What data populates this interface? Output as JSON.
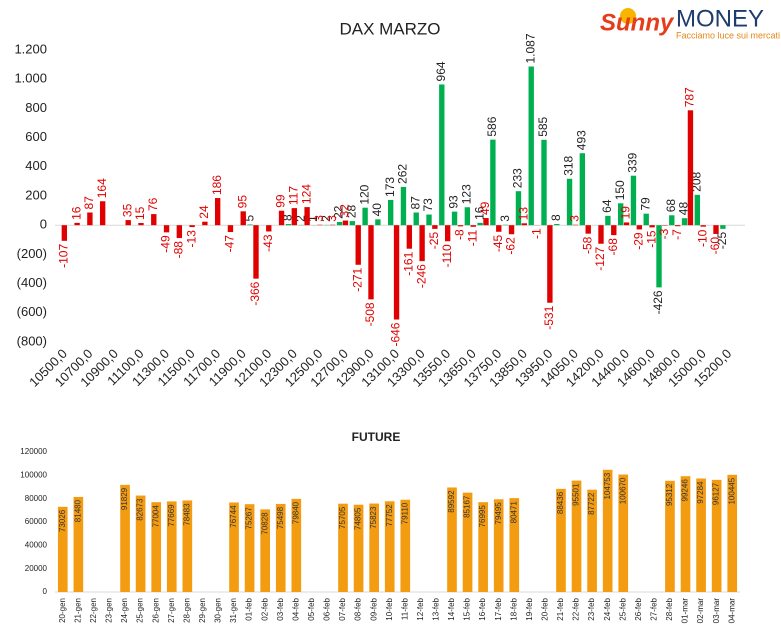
{
  "logo": {
    "brand": "Sunny",
    "name": "MONEY",
    "tagline": "Facciamo luce sui mercati"
  },
  "chart_data": [
    {
      "type": "bar",
      "title": "DAX MARZO",
      "categories": [
        "10500,0",
        null,
        "10700,0",
        null,
        "10900,0",
        null,
        "11100,0",
        null,
        "11300,0",
        null,
        "11500,0",
        null,
        "11700,0",
        null,
        "11900,0",
        null,
        "12100,0",
        null,
        "12300,0",
        null,
        "12500,0",
        null,
        "12700,0",
        null,
        "12900,0",
        null,
        "13100,0",
        null,
        "13300,0",
        null,
        "13550,0",
        null,
        "13650,0",
        null,
        "13750,0",
        null,
        "13850,0",
        null,
        "13950,0",
        null,
        "14050,0",
        null,
        "14200,0",
        null,
        "14400,0",
        null,
        "14600,0",
        null,
        "14800,0",
        null,
        "15000,0",
        null,
        "15200,0",
        null
      ],
      "series": [
        {
          "color": "#00b050",
          "values": [
            null,
            null,
            null,
            null,
            null,
            null,
            null,
            null,
            null,
            null,
            null,
            null,
            null,
            null,
            null,
            5,
            null,
            null,
            8,
            2,
            1,
            2,
            22,
            28,
            120,
            40,
            173,
            262,
            87,
            73,
            964,
            93,
            123,
            16,
            586,
            3,
            233,
            1087,
            585,
            8,
            318,
            493,
            null,
            64,
            150,
            339,
            79,
            -426,
            68,
            48,
            208,
            null,
            -25,
            null
          ],
          "value_labels": [
            null,
            null,
            null,
            null,
            null,
            null,
            null,
            null,
            null,
            null,
            null,
            null,
            null,
            null,
            null,
            "5",
            null,
            null,
            "8",
            "2",
            "1",
            "2",
            "22",
            "28",
            "120",
            "40",
            "173",
            "262",
            "87",
            "73",
            "964",
            "93",
            "123",
            "16",
            "586",
            "3",
            "233",
            "1.087",
            "585",
            "8",
            "318",
            "493",
            null,
            "64",
            "150",
            "339",
            "79",
            "-426",
            "68",
            "48",
            "208",
            null,
            "-25",
            null
          ]
        },
        {
          "color": "#e00000",
          "values": [
            -107,
            16,
            87,
            164,
            null,
            35,
            15,
            76,
            -49,
            -88,
            -13,
            24,
            186,
            -47,
            95,
            -366,
            -43,
            99,
            117,
            124,
            3,
            3,
            32,
            -271,
            -508,
            null,
            -646,
            -161,
            -246,
            -25,
            -110,
            -8,
            -11,
            49,
            -45,
            -62,
            13,
            -1,
            -531,
            null,
            3,
            -58,
            -127,
            -68,
            19,
            -29,
            -15,
            -3,
            -7,
            787,
            -10,
            -60,
            null,
            null
          ]
        }
      ],
      "ylim": [
        -800,
        1200
      ],
      "yticks": [
        {
          "value": 1200,
          "label": "1.200"
        },
        {
          "value": 1000,
          "label": "1.000"
        },
        800,
        600,
        400,
        200,
        0,
        {
          "value": -200,
          "label": "(200)"
        },
        {
          "value": -400,
          "label": "(400)"
        },
        {
          "value": -600,
          "label": "(600)"
        },
        {
          "value": -800,
          "label": "(800)"
        }
      ],
      "grid": false
    },
    {
      "type": "bar",
      "title": "FUTURE",
      "color": "#f39c12",
      "categories": [
        "20-gen",
        "21-gen",
        "22-gen",
        "23-gen",
        "24-gen",
        "25-gen",
        "26-gen",
        "27-gen",
        "28-gen",
        "29-gen",
        "30-gen",
        "31-gen",
        "01-feb",
        "02-feb",
        "03-feb",
        "04-feb",
        "05-feb",
        "06-feb",
        "07-feb",
        "08-feb",
        "09-feb",
        "10-feb",
        "11-feb",
        "12-feb",
        "13-feb",
        "14-feb",
        "15-feb",
        "16-feb",
        "17-feb",
        "18-feb",
        "19-feb",
        "20-feb",
        "21-feb",
        "22-feb",
        "23-feb",
        "24-feb",
        "25-feb",
        "26-feb",
        "27-feb",
        "28-feb",
        "01-mar",
        "02-mar",
        "03-mar",
        "04-mar"
      ],
      "values": [
        73026,
        81480,
        null,
        null,
        91829,
        82673,
        77004,
        77669,
        78483,
        null,
        null,
        76744,
        75267,
        70828,
        75498,
        79840,
        null,
        null,
        75705,
        74805,
        75823,
        77752,
        79110,
        null,
        null,
        89592,
        85167,
        76995,
        79495,
        80471,
        null,
        null,
        88436,
        95501,
        87722,
        104753,
        100670,
        null,
        null,
        95312,
        99246,
        97284,
        96127,
        100445
      ],
      "ylim": [
        0,
        120000
      ],
      "yticks": [
        0,
        20000,
        40000,
        60000,
        80000,
        100000,
        120000
      ],
      "grid": false
    }
  ]
}
